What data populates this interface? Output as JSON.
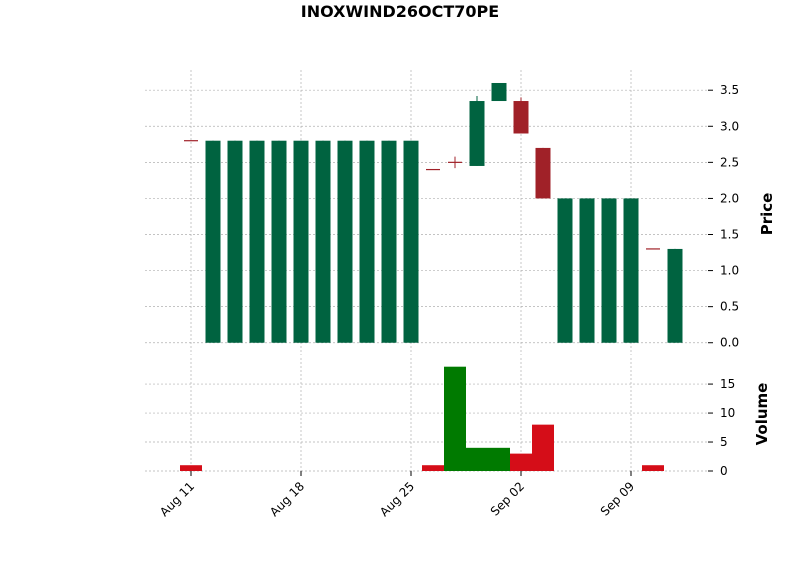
{
  "chart_data": {
    "type": "candlestick",
    "title": "INOXWIND26OCT70PE",
    "categories": [
      "Aug 11",
      null,
      null,
      null,
      null,
      "Aug 18",
      null,
      null,
      null,
      null,
      "Aug 25",
      null,
      null,
      null,
      null,
      "Sep 02",
      null,
      null,
      null,
      null,
      "Sep 09",
      null,
      null
    ],
    "open": [
      2.8,
      0,
      0,
      0,
      0,
      0,
      0,
      0,
      0,
      0,
      0,
      2.4,
      2.5,
      2.45,
      3.35,
      3.35,
      2.7,
      0,
      0,
      0,
      0,
      1.3,
      0
    ],
    "high": [
      2.8,
      2.8,
      2.8,
      2.8,
      2.8,
      2.8,
      2.8,
      2.8,
      2.8,
      2.8,
      2.8,
      2.4,
      2.58,
      3.42,
      3.6,
      3.4,
      2.7,
      2,
      2,
      2,
      2,
      1.3,
      1.3
    ],
    "low": [
      2.8,
      0,
      0,
      0,
      0,
      0,
      0,
      0,
      0,
      0,
      0,
      2.4,
      2.42,
      2.45,
      3.35,
      2.9,
      2,
      0,
      0,
      0,
      0,
      1.3,
      0
    ],
    "close": [
      2.8,
      2.8,
      2.8,
      2.8,
      2.8,
      2.8,
      2.8,
      2.8,
      2.8,
      2.8,
      2.8,
      2.4,
      2.5,
      3.35,
      3.6,
      2.9,
      2,
      2,
      2,
      2,
      2,
      1.3,
      1.3
    ],
    "volume": [
      1,
      0,
      0,
      0,
      0,
      0,
      0,
      0,
      0,
      0,
      0,
      1,
      18,
      4,
      4,
      3,
      8,
      0,
      0,
      0,
      0,
      1,
      0
    ],
    "up_color": "#006340",
    "down_color": "#a02128",
    "volume_colors": [
      "#d50d18",
      "#007a00",
      "#007a00",
      "#007a00",
      "#007a00",
      "#007a00",
      "#007a00",
      "#007a00",
      "#007a00",
      "#007a00",
      "#007a00",
      "#d50d18",
      "#007a00",
      "#007a00",
      "#007a00",
      "#d50d18",
      "#d50d18",
      "#007a00",
      "#007a00",
      "#007a00",
      "#007a00",
      "#d50d18",
      "#007a00"
    ],
    "ylabel": "Price",
    "ylim": [
      -0.17,
      3.78
    ],
    "yticks": [
      {
        "value": 0,
        "label": "0.0"
      },
      0.5,
      {
        "value": 1,
        "label": "1.0"
      },
      1.5,
      {
        "value": 2,
        "label": "2.0"
      },
      2.5,
      {
        "value": 3,
        "label": "3.0"
      },
      3.5
    ],
    "volume_label": "Volume",
    "volume_ylim": [
      0,
      19.5
    ],
    "volume_yticks": [
      0,
      5,
      10,
      15
    ],
    "grid": true
  }
}
